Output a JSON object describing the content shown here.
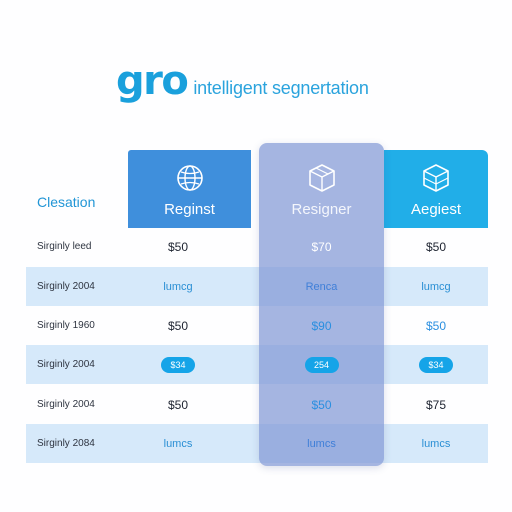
{
  "brand": {
    "logo": "gro",
    "tagline": "intelligent segnertation"
  },
  "table": {
    "section_title": "Clesation",
    "plans": [
      {
        "name": "Reginst",
        "icon": "globe-icon"
      },
      {
        "name": "Resigner",
        "icon": "cube-icon"
      },
      {
        "name": "Aegiest",
        "icon": "cube-icon"
      }
    ],
    "rows": [
      {
        "label": "Sirginly leed",
        "values": [
          "$50",
          "$70",
          "$50"
        ]
      },
      {
        "label": "Sirginly 2004",
        "values": [
          "lumcg",
          "Renca",
          "lumcg"
        ]
      },
      {
        "label": "Sirginly 1960",
        "values": [
          "$50",
          "$90",
          "$50"
        ]
      },
      {
        "label": "Sirginly 2004",
        "values": [
          "$34",
          "254",
          "$34"
        ]
      },
      {
        "label": "Sirginly 2004",
        "values": [
          "$50",
          "$50",
          "$75"
        ]
      },
      {
        "label": "Sirginly 2084",
        "values": [
          "lumcs",
          "lumcs",
          "lumcs"
        ]
      }
    ]
  },
  "colors": {
    "brand": "#1aa0dc",
    "header_left": "#3f8fdc",
    "header_right": "#21aee8",
    "highlight": "#8298d6",
    "band": "#d6e9fa",
    "pill": "#15a4e8"
  }
}
